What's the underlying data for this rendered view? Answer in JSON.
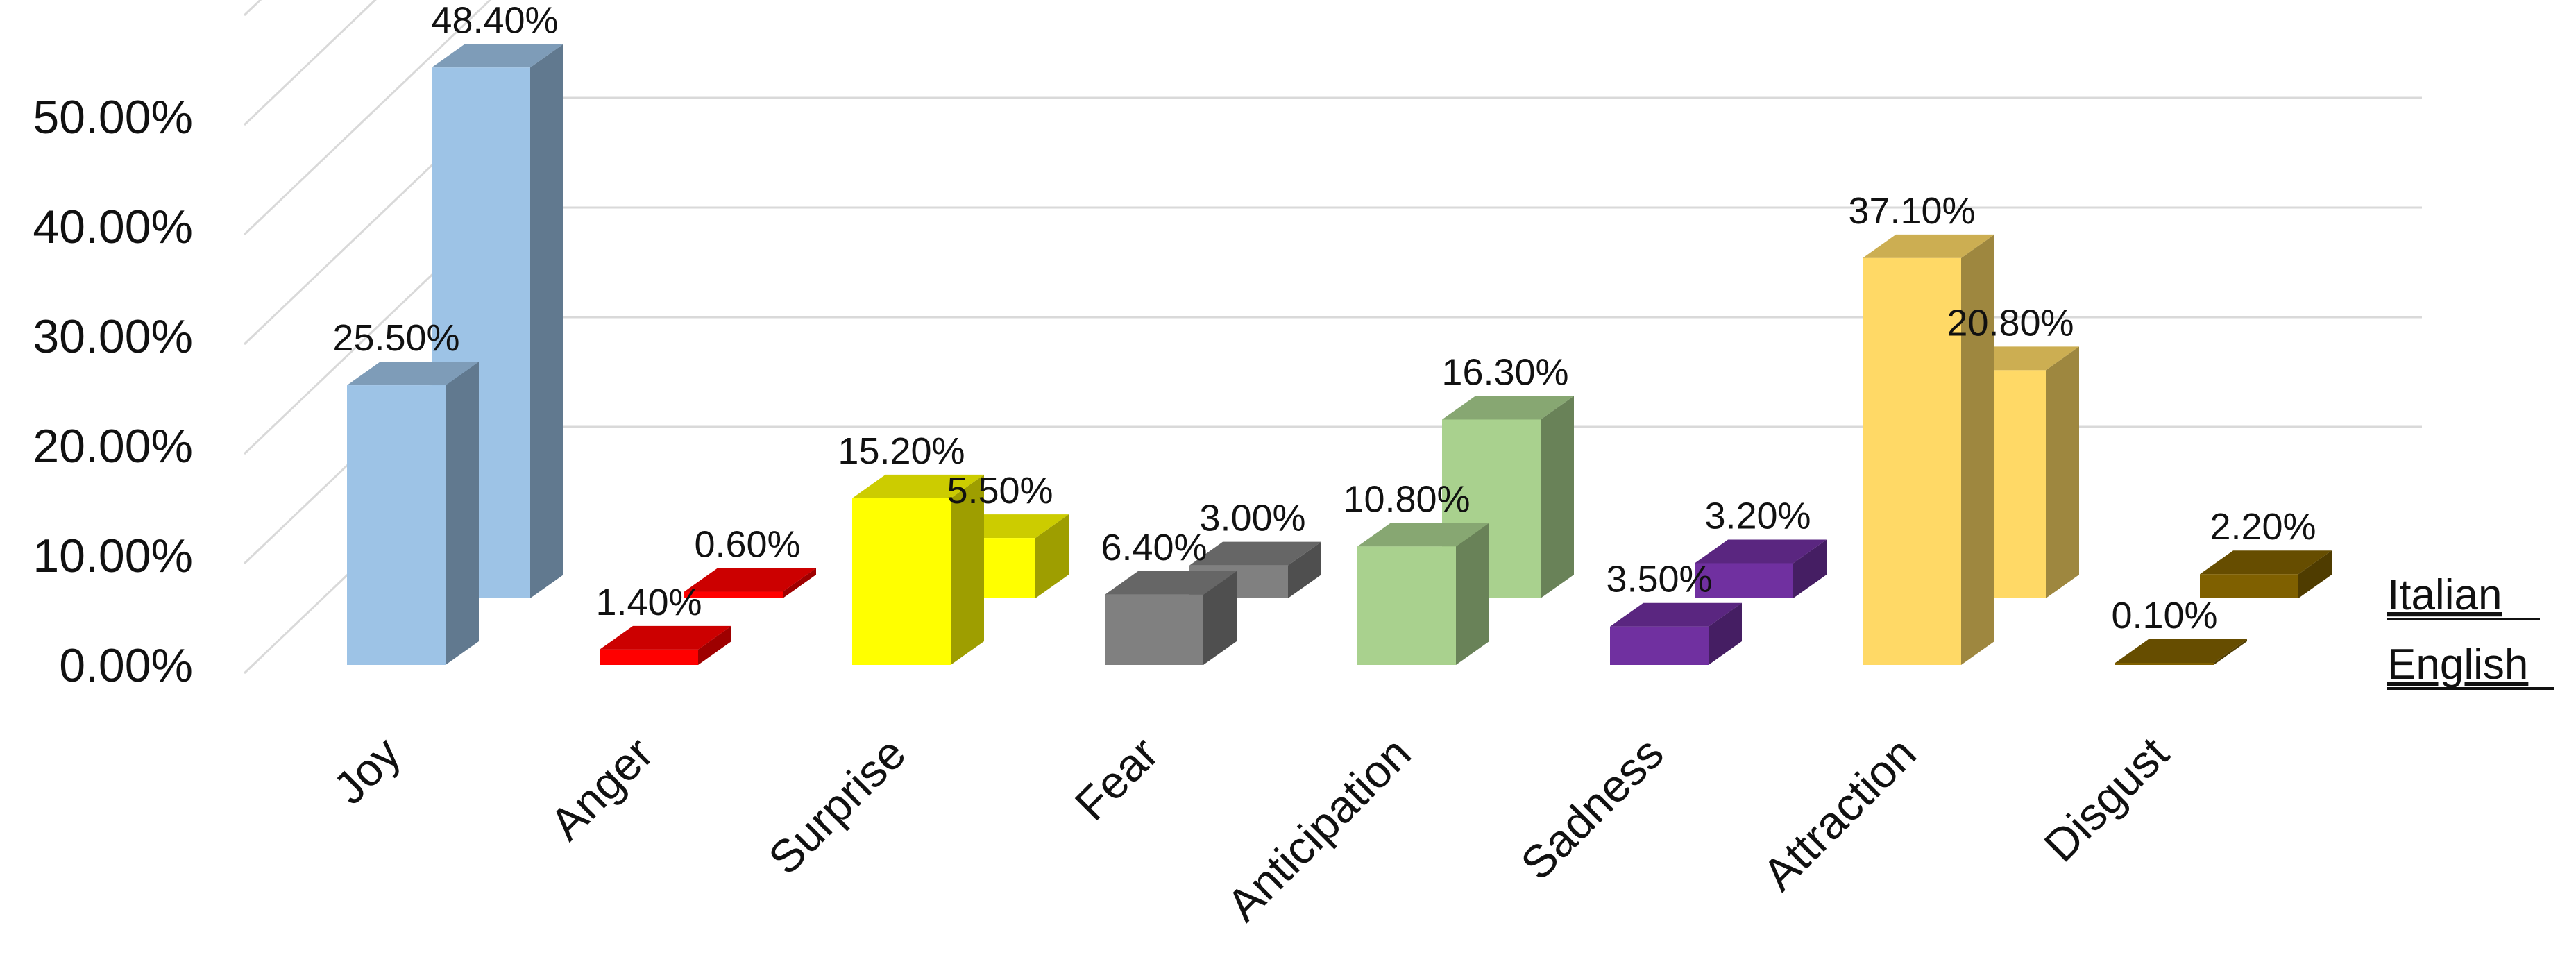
{
  "chart_data": {
    "type": "bar",
    "categories": [
      "Joy",
      "Anger",
      "Surprise",
      "Fear",
      "Anticipation",
      "Sadness",
      "Attraction",
      "Disgust"
    ],
    "series": [
      {
        "name": "Italian",
        "values": [
          48.4,
          0.6,
          5.5,
          3.0,
          16.3,
          3.2,
          20.8,
          2.2
        ],
        "labels": [
          "48.40%",
          "0.60%",
          "5.50%",
          "3.00%",
          "16.30%",
          "3.20%",
          "20.80%",
          "2.20%"
        ]
      },
      {
        "name": "English",
        "values": [
          25.5,
          1.4,
          15.2,
          6.4,
          10.8,
          3.5,
          37.1,
          0.1
        ],
        "labels": [
          "25.50%",
          "1.40%",
          "15.20%",
          "6.40%",
          "10.80%",
          "3.50%",
          "37.10%",
          "0.10%"
        ]
      }
    ],
    "category_colors": [
      "#9dc3e6",
      "#ff0000",
      "#ffff00",
      "#808080",
      "#a9d18e",
      "#7030a0",
      "#ffd966",
      "#7f6000"
    ],
    "yticks": [
      "0.00%",
      "10.00%",
      "20.00%",
      "30.00%",
      "40.00%",
      "50.00%"
    ],
    "ylim": [
      0,
      60
    ],
    "grid": true,
    "view": "3d-clustered-depth"
  }
}
